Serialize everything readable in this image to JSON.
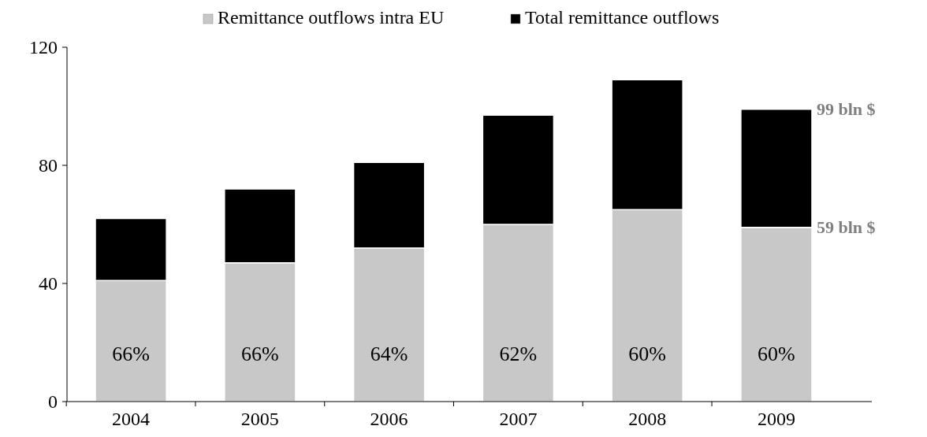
{
  "chart_data": {
    "type": "bar",
    "stacked": true,
    "categories": [
      "2004",
      "2005",
      "2006",
      "2007",
      "2008",
      "2009"
    ],
    "series": [
      {
        "name": "Remittance outflows intra EU",
        "color": "#c8c8c8",
        "values": [
          41,
          47,
          52,
          60,
          65,
          59
        ]
      },
      {
        "name": "Total remittance outflows",
        "color": "#000000",
        "values": [
          21,
          25,
          29,
          37,
          44,
          40
        ]
      }
    ],
    "ylim": [
      0,
      120
    ],
    "yticks": [
      0,
      40,
      80,
      120
    ],
    "grid": false,
    "legend": "top",
    "annotations": [
      "66%",
      "66%",
      "64%",
      "62%",
      "60%",
      "60%",
      {
        "text": "99 bln $",
        "x": "2009",
        "y": 99
      },
      {
        "text": "59 bln $",
        "x": "2009",
        "y": 59
      }
    ]
  }
}
